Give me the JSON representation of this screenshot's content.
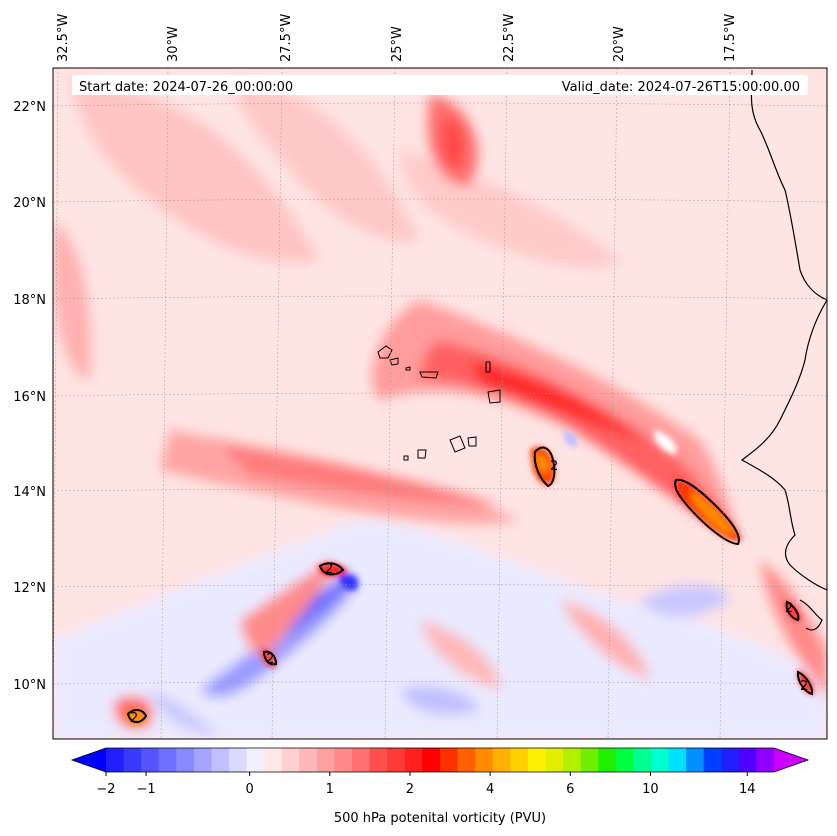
{
  "header": {
    "start_date": "Start date: 2024-07-26_00:00:00",
    "valid_date": "Valid_date: 2024-07-26T15:00:00.00"
  },
  "map": {
    "lon_labels": [
      "32.5°W",
      "30°W",
      "27.5°W",
      "25°W",
      "22.5°W",
      "20°W",
      "17.5°W"
    ],
    "lat_labels": [
      "22°N",
      "20°N",
      "18°N",
      "16°N",
      "14°N",
      "12°N",
      "10°N"
    ],
    "contour_label": "2"
  },
  "colorbar": {
    "label": "500 hPa potenital vorticity (PVU)",
    "tick_labels": [
      "−2",
      "−1",
      "0",
      "1",
      "2",
      "4",
      "6",
      "10",
      "14"
    ],
    "colors": [
      "#2020ff",
      "#3a3aff",
      "#5555ff",
      "#7070ff",
      "#8a8aff",
      "#a5a5ff",
      "#c0c0ff",
      "#dadaff",
      "#f0f0ff",
      "#ffe8e8",
      "#ffd0d0",
      "#ffb8b8",
      "#ffa0a0",
      "#ff8888",
      "#ff7070",
      "#ff5050",
      "#ff3838",
      "#ff2020",
      "#ff0000",
      "#ff3000",
      "#ff6000",
      "#ff8c00",
      "#ffb000",
      "#ffd000",
      "#fff000",
      "#e0f000",
      "#b0f000",
      "#70f000",
      "#20f000",
      "#00ff40",
      "#00ff90",
      "#00ffd0",
      "#00e0ff",
      "#0090ff",
      "#0040ff",
      "#2020ff",
      "#5000ff",
      "#9000ff"
    ],
    "under_color": "#0000ff",
    "over_color": "#cc00ff"
  }
}
